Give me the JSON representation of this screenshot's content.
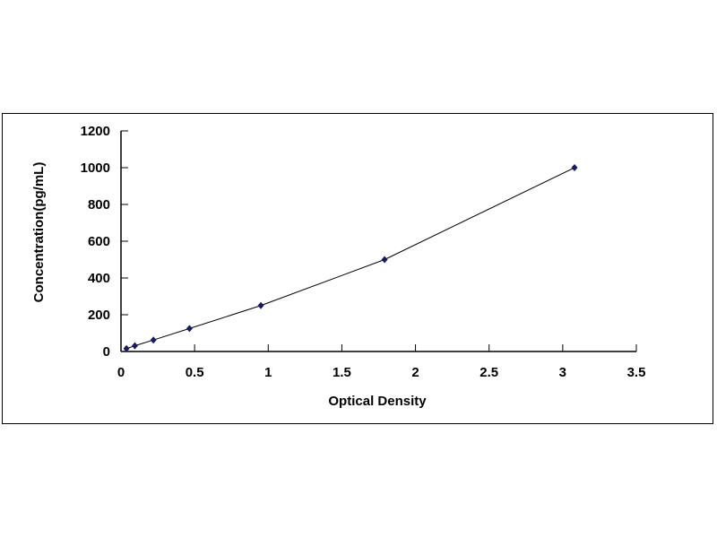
{
  "chart_data": {
    "type": "scatter",
    "title": "",
    "xlabel": "Optical Density",
    "ylabel": "Concentration(pg/mL)",
    "xlim": [
      0,
      3.5
    ],
    "ylim": [
      0,
      1200
    ],
    "xticks": [
      "0",
      "0.5",
      "1",
      "1.5",
      "2",
      "2.5",
      "3",
      "3.5"
    ],
    "yticks": [
      "0",
      "200",
      "400",
      "600",
      "800",
      "1000",
      "1200"
    ],
    "grid": false,
    "legend": "none",
    "marker_color": "#1a1a5e",
    "line_color": "#000000",
    "series": [
      {
        "x": [
          0.037,
          0.094,
          0.22,
          0.465,
          0.95,
          1.79,
          3.08
        ],
        "y": [
          15.6,
          31.2,
          62.5,
          125,
          250,
          500,
          1000
        ]
      }
    ]
  }
}
